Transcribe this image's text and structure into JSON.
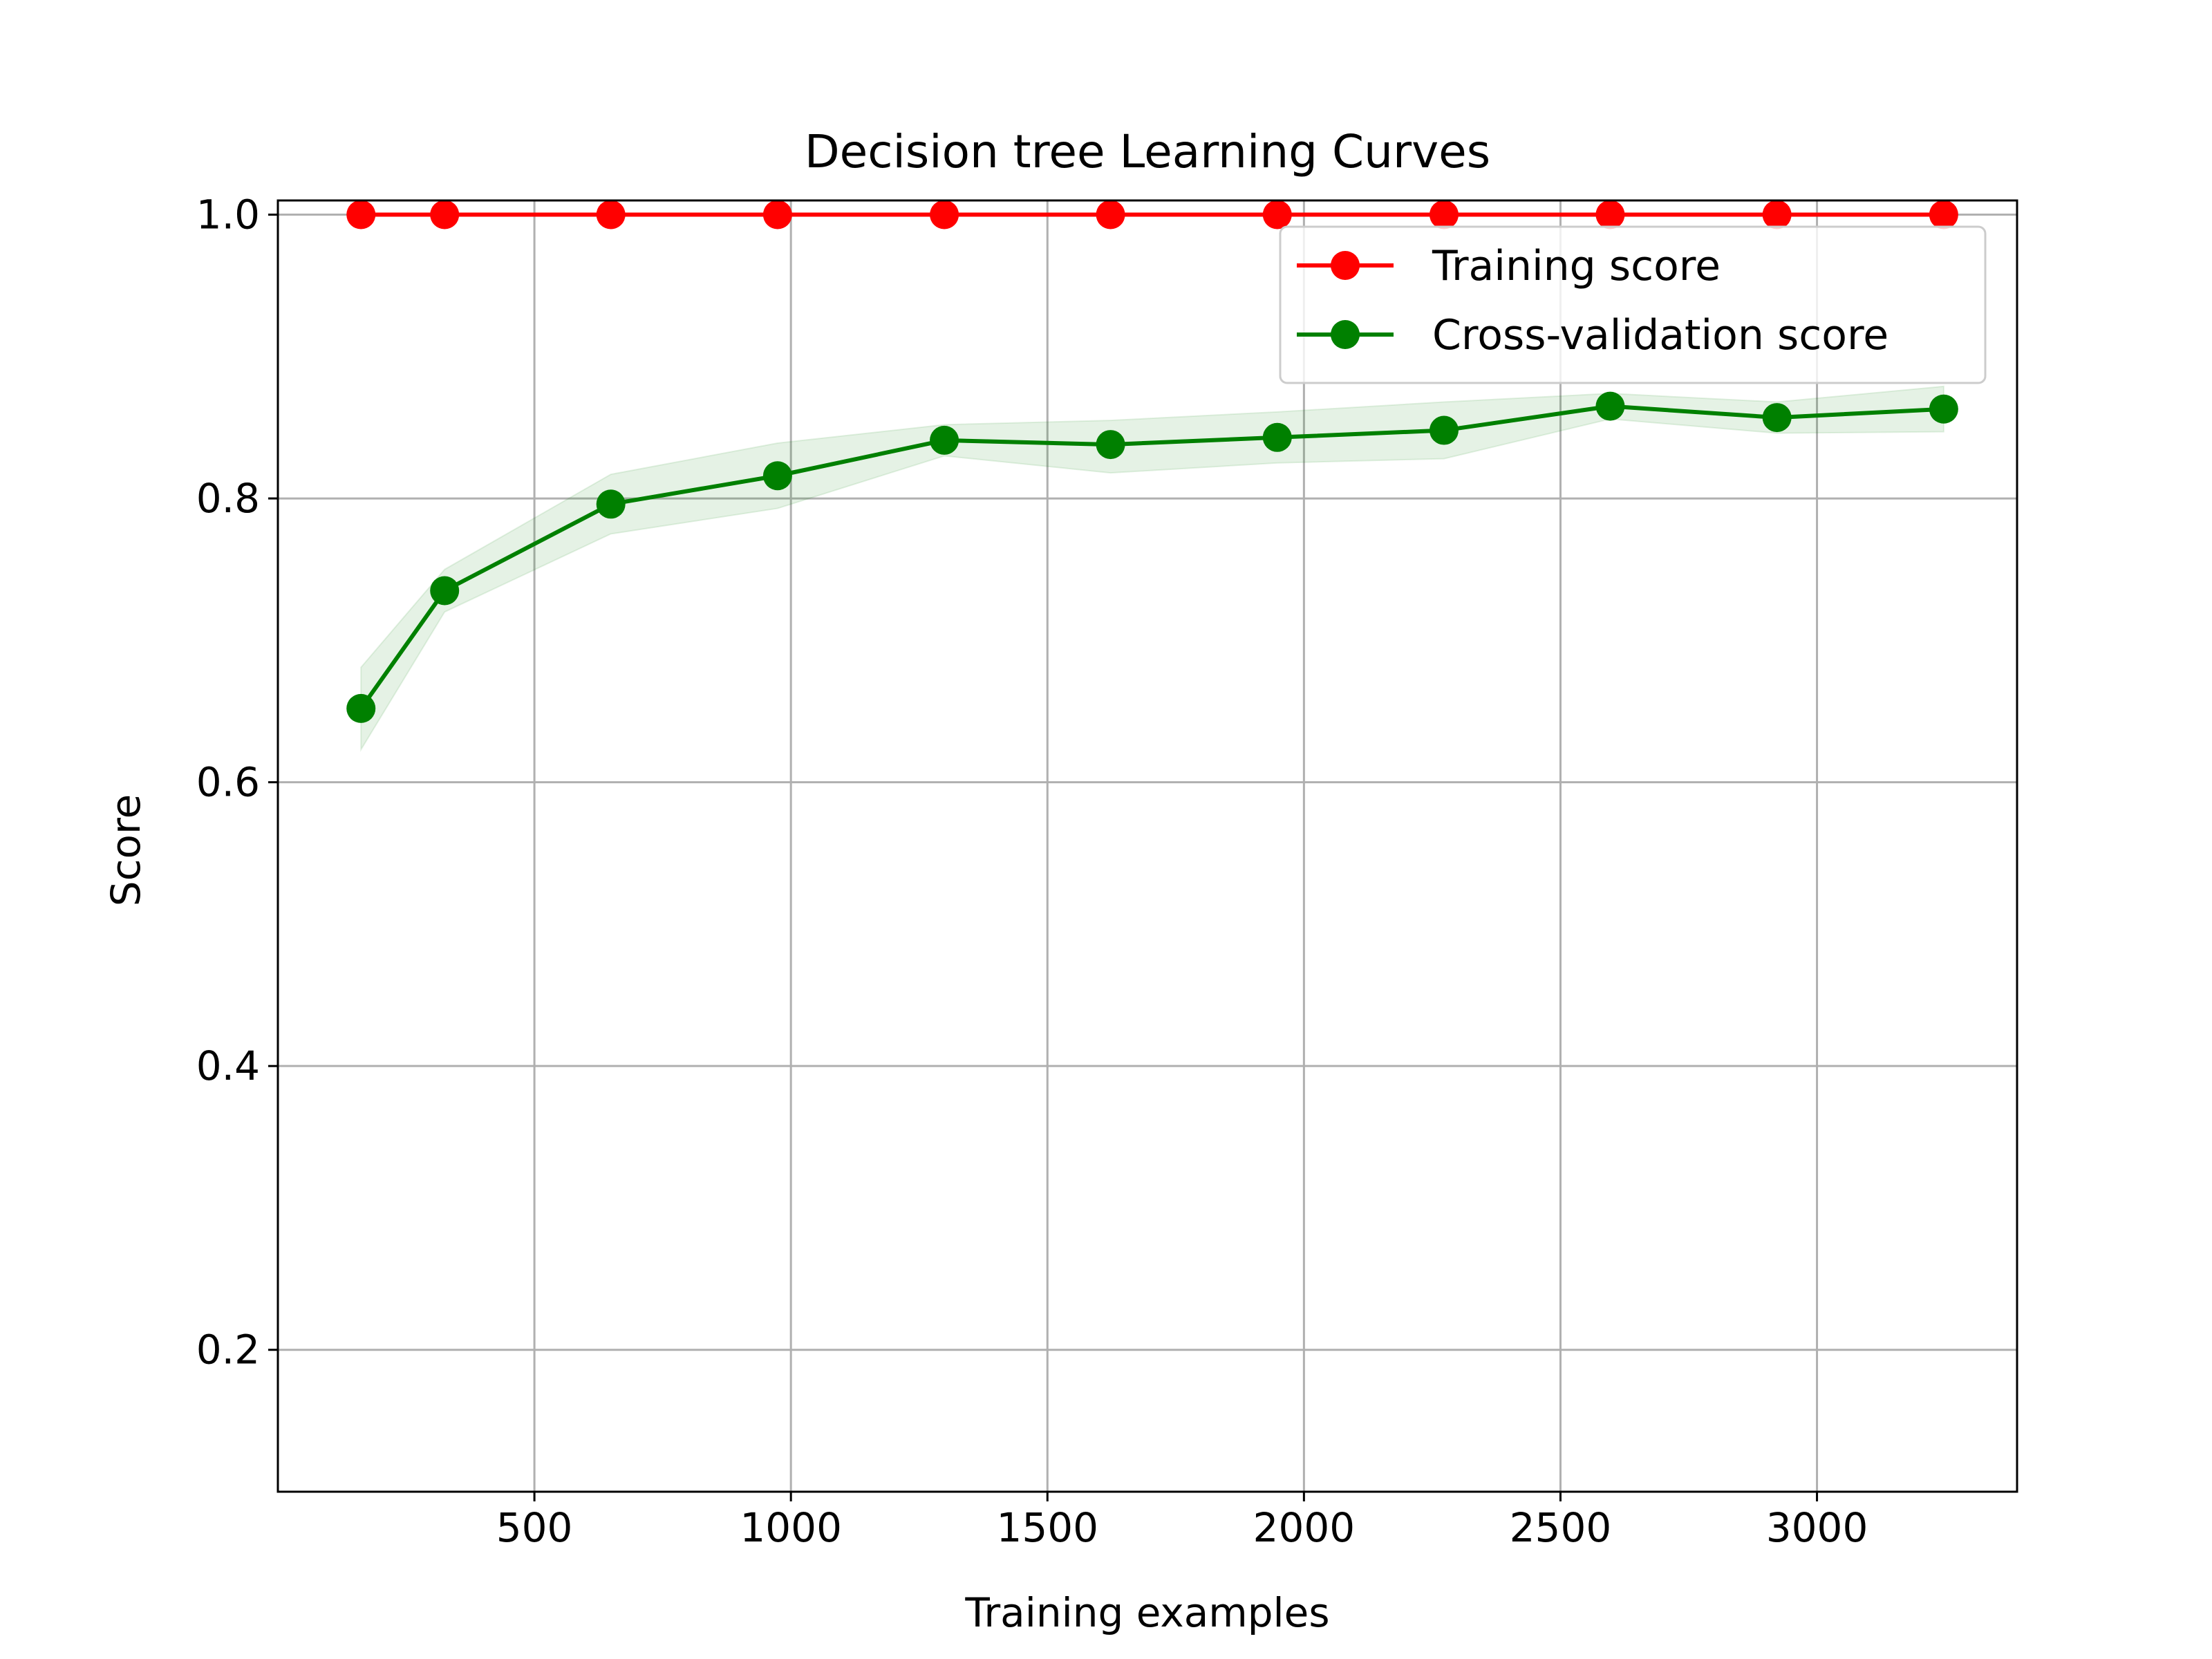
{
  "chart_data": {
    "type": "line",
    "title": "Decision tree Learning Curves",
    "xlabel": "Training examples",
    "ylabel": "Score",
    "xlim": [
      0,
      3390
    ],
    "ylim": [
      0.1,
      1.01
    ],
    "xticks": [
      500,
      1000,
      1500,
      2000,
      2500,
      3000
    ],
    "yticks": [
      0.2,
      0.4,
      0.6,
      0.8,
      1.0
    ],
    "xtick_labels": [
      "500",
      "1000",
      "1500",
      "2000",
      "2500",
      "3000"
    ],
    "ytick_labels": [
      "0.2",
      "0.4",
      "0.6",
      "0.8",
      "1.0"
    ],
    "grid": true,
    "legend_position": "top-right",
    "x": [
      162,
      325,
      649,
      974,
      1299,
      1623,
      1948,
      2273,
      2597,
      2922,
      3247
    ],
    "series": [
      {
        "name": "Training score",
        "color": "#ff0000",
        "values": [
          1.0,
          1.0,
          1.0,
          1.0,
          1.0,
          1.0,
          1.0,
          1.0,
          1.0,
          1.0,
          1.0
        ],
        "band_low": [
          1.0,
          1.0,
          1.0,
          1.0,
          1.0,
          1.0,
          1.0,
          1.0,
          1.0,
          1.0,
          1.0
        ],
        "band_high": [
          1.0,
          1.0,
          1.0,
          1.0,
          1.0,
          1.0,
          1.0,
          1.0,
          1.0,
          1.0,
          1.0
        ]
      },
      {
        "name": "Cross-validation score",
        "color": "#008000",
        "values": [
          0.652,
          0.735,
          0.796,
          0.816,
          0.841,
          0.838,
          0.843,
          0.848,
          0.865,
          0.857,
          0.863
        ],
        "band_low": [
          0.623,
          0.72,
          0.775,
          0.793,
          0.83,
          0.818,
          0.825,
          0.828,
          0.856,
          0.846,
          0.847
        ],
        "band_high": [
          0.681,
          0.75,
          0.817,
          0.839,
          0.852,
          0.855,
          0.861,
          0.868,
          0.874,
          0.868,
          0.879
        ]
      }
    ]
  }
}
